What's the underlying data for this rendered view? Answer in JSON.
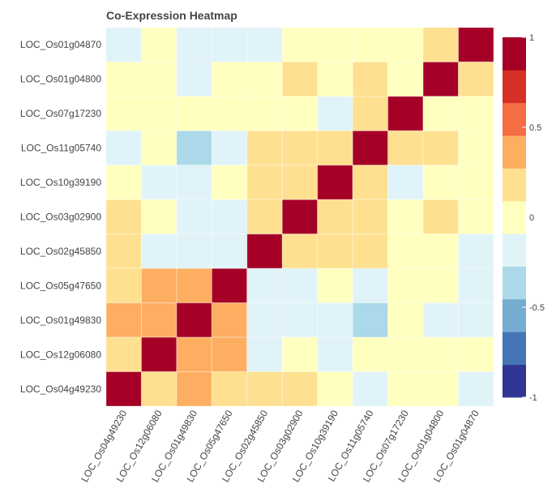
{
  "chart_data": {
    "type": "heatmap",
    "title": "Co-Expression Heatmap",
    "xlabel": "",
    "ylabel": "",
    "x_categories": [
      "LOC_Os04g49230",
      "LOC_Os12g06080",
      "LOC_Os01g49830",
      "LOC_Os05g47650",
      "LOC_Os02g45850",
      "LOC_Os03g02900",
      "LOC_Os10g39190",
      "LOC_Os11g05740",
      "LOC_Os07g17230",
      "LOC_Os01g04800",
      "LOC_Os01g04870"
    ],
    "y_categories_top_to_bottom": [
      "LOC_Os01g04870",
      "LOC_Os01g04800",
      "LOC_Os07g17230",
      "LOC_Os11g05740",
      "LOC_Os10g39190",
      "LOC_Os03g02900",
      "LOC_Os02g45850",
      "LOC_Os05g47650",
      "LOC_Os01g49830",
      "LOC_Os12g06080",
      "LOC_Os04g49230"
    ],
    "values_rows_top_to_bottom": [
      [
        -0.18,
        0,
        -0.18,
        -0.18,
        -0.18,
        0,
        0,
        0,
        0,
        0.18,
        1
      ],
      [
        0,
        0,
        -0.18,
        0,
        0,
        0.18,
        0,
        0.18,
        0,
        1,
        0.18
      ],
      [
        0,
        0,
        0,
        0,
        0,
        0,
        -0.18,
        0.18,
        1,
        0,
        0
      ],
      [
        -0.18,
        0,
        -0.36,
        -0.18,
        0.18,
        0.18,
        0.18,
        1,
        0.18,
        0.18,
        0
      ],
      [
        0,
        -0.18,
        -0.18,
        0,
        0.18,
        0.18,
        1,
        0.18,
        -0.18,
        0,
        0
      ],
      [
        0.18,
        0,
        -0.18,
        -0.18,
        0.18,
        1,
        0.18,
        0.18,
        0,
        0.18,
        0
      ],
      [
        0.18,
        -0.18,
        -0.18,
        -0.18,
        1,
        0.18,
        0.18,
        0.18,
        0,
        0,
        -0.18
      ],
      [
        0.18,
        0.36,
        0.36,
        1,
        -0.18,
        -0.18,
        0,
        -0.18,
        0,
        0,
        -0.18
      ],
      [
        0.36,
        0.36,
        1,
        0.36,
        -0.18,
        -0.18,
        -0.18,
        -0.36,
        0,
        -0.18,
        -0.18
      ],
      [
        0.18,
        1,
        0.36,
        0.36,
        -0.18,
        0,
        -0.18,
        0,
        0,
        0,
        0
      ],
      [
        1,
        0.18,
        0.36,
        0.18,
        0.18,
        0.18,
        0,
        -0.18,
        0,
        0,
        -0.18
      ]
    ],
    "zlim": [
      -1,
      1
    ],
    "colorscale": [
      "#313695",
      "#4575b4",
      "#74add1",
      "#abd9e9",
      "#e0f3f8",
      "#ffffbf",
      "#fee090",
      "#fdae61",
      "#f46d43",
      "#d73027",
      "#a50026"
    ],
    "colorbar": {
      "ticks": [
        1,
        0.5,
        0,
        -0.5,
        -1
      ],
      "tick_labels": [
        "1",
        "0.5",
        "0",
        "-0.5",
        "-1"
      ],
      "placement": "right"
    },
    "grid": false,
    "legend": "none"
  }
}
